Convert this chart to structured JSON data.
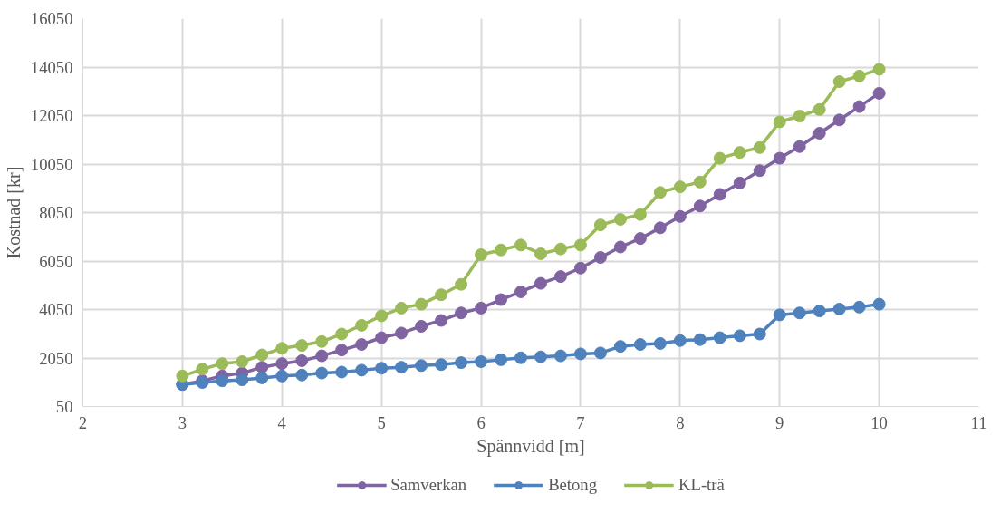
{
  "chart_data": {
    "type": "line",
    "xlabel": "Spännvidd [m]",
    "ylabel": "Kostnad [kr]",
    "x": [
      3,
      3.2,
      3.4,
      3.6,
      3.8,
      4,
      4.2,
      4.4,
      4.6,
      4.8,
      5,
      5.2,
      5.4,
      5.6,
      5.8,
      6,
      6.2,
      6.4,
      6.6,
      6.8,
      7,
      7.2,
      7.4,
      7.6,
      7.8,
      8,
      8.2,
      8.4,
      8.6,
      8.8,
      9,
      9.2,
      9.4,
      9.6,
      9.8,
      10
    ],
    "series": [
      {
        "name": "Samverkan",
        "color": "#8064a2",
        "values": [
          960,
          1110,
          1310,
          1430,
          1670,
          1820,
          1940,
          2140,
          2380,
          2610,
          2890,
          3080,
          3360,
          3600,
          3910,
          4110,
          4460,
          4780,
          5130,
          5410,
          5760,
          6200,
          6630,
          6980,
          7420,
          7890,
          8320,
          8800,
          9270,
          9780,
          10290,
          10770,
          11320,
          11870,
          12420,
          12970
        ]
      },
      {
        "name": "Betong",
        "color": "#4f81bd",
        "values": [
          960,
          1040,
          1110,
          1150,
          1230,
          1310,
          1350,
          1430,
          1470,
          1550,
          1630,
          1670,
          1740,
          1780,
          1860,
          1900,
          1980,
          2060,
          2100,
          2140,
          2220,
          2260,
          2530,
          2610,
          2650,
          2770,
          2810,
          2890,
          2970,
          3040,
          3830,
          3910,
          3990,
          4070,
          4150,
          4270
        ]
      },
      {
        "name": "KL-trä",
        "color": "#9bbb59",
        "values": [
          1310,
          1590,
          1820,
          1900,
          2180,
          2450,
          2570,
          2730,
          3040,
          3400,
          3790,
          4110,
          4270,
          4660,
          5090,
          6310,
          6510,
          6710,
          6350,
          6550,
          6710,
          7540,
          7770,
          7970,
          8880,
          9110,
          9310,
          10290,
          10530,
          10730,
          11790,
          12030,
          12300,
          13450,
          13680,
          13960
        ]
      }
    ],
    "xlim": [
      2,
      11
    ],
    "xticks": [
      2,
      3,
      4,
      5,
      6,
      7,
      8,
      9,
      10,
      11
    ],
    "ylim": [
      50,
      16050
    ],
    "yticks": [
      50,
      2050,
      4050,
      6050,
      8050,
      10050,
      12050,
      14050,
      16050
    ],
    "grid": true,
    "legend": "bottom",
    "marker": "circle",
    "line_style": "solid"
  }
}
